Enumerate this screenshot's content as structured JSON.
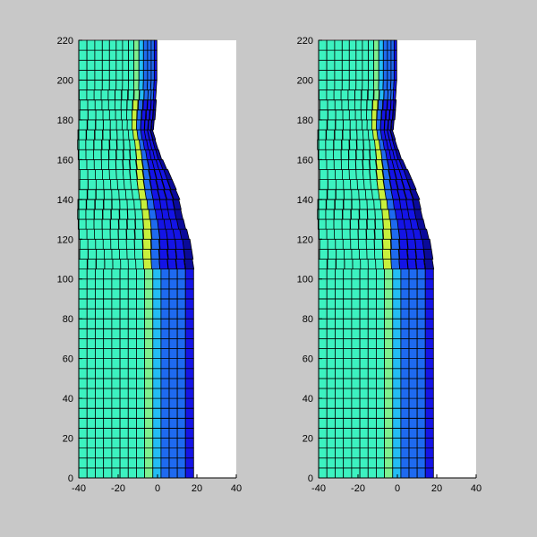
{
  "figure": {
    "background": "#c8c8c8",
    "axes_background": "#ffffff",
    "edge_color": "#000000"
  },
  "colors": {
    "aqua": "#3cf2c0",
    "green": "#7ef08e",
    "yellow": "#c8f03c",
    "sky": "#23bdf4",
    "blue": "#1e6af0",
    "deep_blue": "#1414e6",
    "navy": "#0a0a9a"
  },
  "chart_data": [
    {
      "type": "heatmap",
      "title": "",
      "xlabel": "",
      "ylabel": "",
      "xlim": [
        -40,
        40
      ],
      "ylim": [
        0,
        220
      ],
      "xticks": [
        -40,
        -20,
        0,
        20,
        40
      ],
      "yticks": [
        0,
        20,
        40,
        60,
        80,
        100,
        120,
        140,
        160,
        180,
        200,
        220
      ],
      "grid": false,
      "mesh": {
        "x_range": [
          -40,
          20
        ],
        "y_range": [
          0,
          220
        ],
        "element_height": 5,
        "element_width": 4.2,
        "necked_region": [
          105,
          190
        ],
        "neck_profile": [
          {
            "y": 0,
            "right_edge": 19.5
          },
          {
            "y": 105,
            "right_edge": 19.5
          },
          {
            "y": 120,
            "right_edge": 17
          },
          {
            "y": 140,
            "right_edge": 12
          },
          {
            "y": 160,
            "right_edge": 3
          },
          {
            "y": 175,
            "right_edge": -2
          },
          {
            "y": 200,
            "right_edge": 0
          },
          {
            "y": 220,
            "right_edge": 0
          }
        ],
        "bands": [
          {
            "x_from": -40,
            "x_to": -8,
            "color": "aqua"
          },
          {
            "x_from": -8,
            "x_to": -2,
            "color": "green"
          },
          {
            "x_from": -2,
            "x_to": 3,
            "color": "sky"
          },
          {
            "x_from": 3,
            "x_to": 14,
            "color": "blue"
          },
          {
            "x_from": 14,
            "x_to": 20,
            "color": "deep_blue"
          }
        ]
      }
    },
    {
      "type": "heatmap",
      "title": "",
      "xlabel": "",
      "ylabel": "",
      "xlim": [
        -40,
        40
      ],
      "ylim": [
        0,
        220
      ],
      "xticks": [
        -40,
        -20,
        0,
        20,
        40
      ],
      "yticks": [
        0,
        20,
        40,
        60,
        80,
        100,
        120,
        140,
        160,
        180,
        200,
        220
      ],
      "grid": false,
      "mesh": {
        "x_range": [
          -40,
          20
        ],
        "y_range": [
          0,
          220
        ],
        "element_height": 5,
        "element_width": 4.2,
        "necked_region": [
          105,
          190
        ],
        "neck_profile": [
          {
            "y": 0,
            "right_edge": 19.5
          },
          {
            "y": 105,
            "right_edge": 19.5
          },
          {
            "y": 120,
            "right_edge": 17
          },
          {
            "y": 140,
            "right_edge": 12
          },
          {
            "y": 160,
            "right_edge": 3
          },
          {
            "y": 175,
            "right_edge": -2
          },
          {
            "y": 200,
            "right_edge": 0
          },
          {
            "y": 220,
            "right_edge": 0
          }
        ],
        "bands": [
          {
            "x_from": -40,
            "x_to": -8,
            "color": "aqua"
          },
          {
            "x_from": -8,
            "x_to": -2,
            "color": "green"
          },
          {
            "x_from": -2,
            "x_to": 3,
            "color": "sky"
          },
          {
            "x_from": 3,
            "x_to": 14,
            "color": "blue"
          },
          {
            "x_from": 14,
            "x_to": 20,
            "color": "deep_blue"
          }
        ]
      }
    }
  ]
}
